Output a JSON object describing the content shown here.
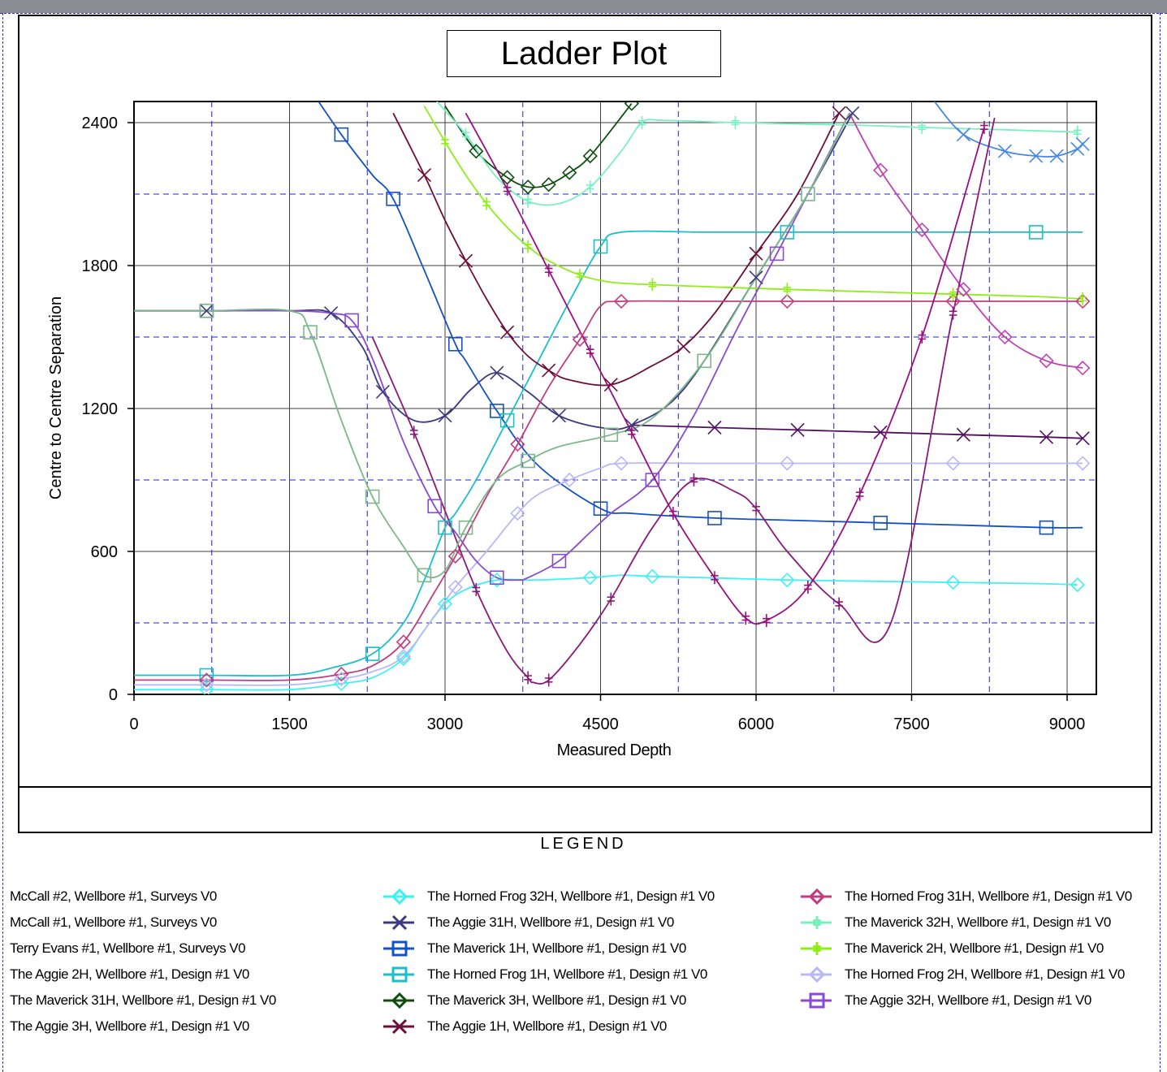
{
  "chart_data": {
    "type": "line",
    "title": "Ladder Plot",
    "xlabel": "Measured Depth",
    "ylabel": "Centre to Centre Separation",
    "xlim": [
      0,
      9300
    ],
    "ylim": [
      0,
      2500
    ],
    "x_ticks": [
      "0",
      "1500",
      "3000",
      "4500",
      "6000",
      "7500",
      "9000"
    ],
    "y_ticks": [
      "0",
      "600",
      "1200",
      "1800",
      "2400"
    ],
    "grid": "on",
    "series": [
      {
        "name": "The Horned Frog 32H, Wellbore #1, Design #1 V0",
        "color": "#3ef2f2",
        "marker": "diamond",
        "x": [
          0,
          700,
          1500,
          2000,
          2300,
          2600,
          2800,
          3000,
          3200,
          3500,
          3900,
          4400,
          4700,
          5000,
          5500,
          6300,
          7100,
          7900,
          8700,
          9100
        ],
        "y": [
          20,
          20,
          20,
          45,
          70,
          150,
          270,
          380,
          440,
          480,
          480,
          490,
          500,
          495,
          490,
          480,
          475,
          470,
          465,
          460
        ]
      },
      {
        "name": "The Aggie 31H, Wellbore #1, Design #1 V0",
        "color": "#3a3a7e",
        "marker": "x",
        "x": [
          0,
          700,
          1500,
          1900,
          2200,
          2400,
          2700,
          3000,
          3250,
          3500,
          3800,
          4100,
          4500,
          4800,
          5300,
          6000,
          6500,
          6930
        ],
        "y": [
          1610,
          1610,
          1610,
          1600,
          1460,
          1270,
          1150,
          1170,
          1280,
          1350,
          1270,
          1170,
          1120,
          1130,
          1280,
          1750,
          2100,
          2440
        ]
      },
      {
        "name": "The Maverick 1H, Wellbore #1, Design #1 V0",
        "color": "#1450c8",
        "marker": "square",
        "x": [
          1700,
          2000,
          2300,
          2500,
          2800,
          3100,
          3200,
          3500,
          3900,
          4500,
          4800,
          5600,
          6400,
          7200,
          8000,
          8800,
          9150
        ],
        "y": [
          2540,
          2350,
          2180,
          2080,
          1780,
          1470,
          1400,
          1190,
          960,
          780,
          760,
          740,
          730,
          720,
          710,
          700,
          700
        ]
      },
      {
        "name": "The Horned Frog 1H, Wellbore #1, Design #1 V0",
        "color": "#18c0c8",
        "marker": "square",
        "x": [
          0,
          700,
          1500,
          1900,
          2300,
          2600,
          2800,
          3000,
          3100,
          3300,
          3600,
          3900,
          4200,
          4500,
          4700,
          5500,
          6300,
          7100,
          7900,
          8700,
          9150
        ],
        "y": [
          80,
          80,
          80,
          110,
          170,
          300,
          480,
          700,
          760,
          900,
          1150,
          1400,
          1650,
          1880,
          1940,
          1940,
          1940,
          1940,
          1940,
          1940,
          1940
        ]
      },
      {
        "name": "The Maverick 3H, Wellbore #1, Design #1 V0",
        "color": "#0e4e0e",
        "marker": "diamond",
        "x": [
          3000,
          3300,
          3600,
          3800,
          4000,
          4200,
          4400,
          4800
        ],
        "y": [
          2470,
          2280,
          2170,
          2130,
          2140,
          2190,
          2260,
          2480
        ]
      },
      {
        "name": "The Aggie 1H, Wellbore #1, Design #1 V0",
        "color": "#6e0e38",
        "marker": "x",
        "x": [
          2500,
          2800,
          3000,
          3200,
          3400,
          3600,
          3800,
          4000,
          4200,
          4600,
          5000,
          5300,
          5600,
          6000,
          6400,
          6800
        ],
        "y": [
          2440,
          2180,
          1990,
          1820,
          1660,
          1520,
          1420,
          1360,
          1320,
          1300,
          1380,
          1460,
          1600,
          1850,
          2100,
          2440
        ]
      },
      {
        "name": "The Horned Frog 31H, Wellbore #1, Design #1 V0",
        "color": "#c23c80",
        "marker": "diamond",
        "x": [
          0,
          700,
          1500,
          2000,
          2300,
          2600,
          2900,
          3100,
          3400,
          3700,
          4000,
          4300,
          4500,
          4700,
          5500,
          6300,
          7100,
          7900,
          8700,
          9150
        ],
        "y": [
          60,
          60,
          60,
          85,
          120,
          220,
          430,
          580,
          830,
          1050,
          1290,
          1490,
          1630,
          1650,
          1650,
          1650,
          1650,
          1650,
          1650,
          1650
        ]
      },
      {
        "name": "The Maverick 32H, Wellbore #1, Design #1 V0",
        "color": "#78f0c0",
        "marker": "plus",
        "x": [
          2900,
          3200,
          3500,
          3800,
          4100,
          4400,
          4700,
          4900,
          5100,
          5800,
          6900,
          7600,
          8400,
          9100
        ],
        "y": [
          2500,
          2350,
          2170,
          2070,
          2060,
          2130,
          2280,
          2400,
          2410,
          2400,
          2390,
          2380,
          2370,
          2360
        ]
      },
      {
        "name": "The Maverick 2H, Wellbore #1, Design #1 V0",
        "color": "#90ee18",
        "marker": "plus",
        "x": [
          2800,
          3000,
          3200,
          3400,
          3600,
          3800,
          4000,
          4300,
          4600,
          5000,
          5600,
          6300,
          7100,
          7900,
          8700,
          9150
        ],
        "y": [
          2470,
          2320,
          2180,
          2060,
          1960,
          1880,
          1820,
          1760,
          1730,
          1720,
          1710,
          1700,
          1690,
          1680,
          1670,
          1660
        ]
      },
      {
        "name": "The Horned Frog 2H, Wellbore #1, Design #1 V0",
        "color": "#b8b8f8",
        "marker": "diamond",
        "x": [
          0,
          700,
          1500,
          2000,
          2300,
          2600,
          2900,
          3100,
          3400,
          3700,
          3900,
          4200,
          4500,
          4700,
          5500,
          6300,
          7100,
          7900,
          8700,
          9150
        ],
        "y": [
          40,
          40,
          40,
          65,
          95,
          160,
          330,
          450,
          600,
          760,
          840,
          900,
          950,
          970,
          970,
          970,
          970,
          970,
          970,
          970
        ]
      },
      {
        "name": "The Aggie 32H, Wellbore #1, Design #1 V0",
        "color": "#8a4ad0",
        "marker": "square",
        "x": [
          0,
          700,
          1500,
          1900,
          2100,
          2300,
          2600,
          2900,
          3100,
          3300,
          3500,
          3700,
          3800,
          4100,
          4400,
          4600,
          5000,
          5400,
          5800,
          6200,
          6500,
          6900
        ],
        "y": [
          1610,
          1610,
          1610,
          1600,
          1570,
          1410,
          1060,
          790,
          680,
          560,
          490,
          480,
          490,
          560,
          680,
          760,
          900,
          1170,
          1520,
          1850,
          2100,
          2440
        ]
      },
      {
        "name": "McCall #2, Wellbore #1, Surveys V0",
        "color": "#c040b0",
        "marker": "diamond",
        "x": [
          6900,
          7200,
          7600,
          8000,
          8400,
          8800,
          9150
        ],
        "y": [
          2440,
          2200,
          1950,
          1700,
          1500,
          1400,
          1370
        ]
      },
      {
        "name": "McCall #1, Wellbore #1, Surveys V0",
        "color": "#4488e0",
        "marker": "x",
        "x": [
          7700,
          8000,
          8400,
          8700,
          8900,
          9100,
          9150
        ],
        "y": [
          2500,
          2350,
          2280,
          2260,
          2260,
          2290,
          2310
        ]
      },
      {
        "name": "Terry Evans #1, Wellbore #1, Surveys V0",
        "color": "#501060",
        "marker": "x",
        "x": [
          4800,
          5600,
          6400,
          7200,
          8000,
          8800,
          9150
        ],
        "y": [
          1130,
          1120,
          1110,
          1100,
          1090,
          1080,
          1075
        ]
      },
      {
        "name": "The Aggie 2H, Wellbore #1, Design #1 V0",
        "color": "#8a1a78",
        "marker": "plus",
        "x": [
          2300,
          2700,
          3000,
          3300,
          3600,
          3800,
          3850,
          4000,
          4300,
          4600,
          5000,
          5400,
          5800,
          6000,
          6300,
          6800,
          7300,
          7900,
          8300
        ],
        "y": [
          1500,
          1100,
          770,
          440,
          180,
          70,
          50,
          60,
          210,
          400,
          700,
          900,
          850,
          780,
          600,
          380,
          300,
          1600,
          2420
        ]
      },
      {
        "name": "The Maverick 31H, Wellbore #1, Design #1 V0",
        "color": "#7ab888",
        "marker": "square",
        "x": [
          0,
          700,
          1500,
          1700,
          2000,
          2300,
          2600,
          2800,
          3000,
          3200,
          3500,
          3800,
          4100,
          4600,
          5000,
          5500,
          6000,
          6500,
          6900
        ],
        "y": [
          1610,
          1610,
          1610,
          1520,
          1150,
          830,
          620,
          500,
          520,
          700,
          900,
          980,
          1040,
          1090,
          1160,
          1400,
          1750,
          2100,
          2440
        ]
      },
      {
        "name": "The Aggie 3H, Wellbore #1, Design #1 V0",
        "color": "#9a0e80",
        "marker": "plus",
        "x": [
          3200,
          3600,
          4000,
          4400,
          4800,
          5200,
          5600,
          5900,
          6100,
          6500,
          7000,
          7600,
          8200
        ],
        "y": [
          2440,
          2120,
          1780,
          1440,
          1100,
          760,
          490,
          320,
          310,
          450,
          840,
          1500,
          2380
        ]
      }
    ]
  },
  "legend": {
    "title": "LEGEND",
    "col1": [
      "McCall #2, Wellbore #1, Surveys V0",
      "McCall #1, Wellbore #1, Surveys V0",
      "Terry Evans #1, Wellbore #1, Surveys V0",
      "The Aggie 2H, Wellbore #1, Design #1 V0",
      "The Maverick 31H, Wellbore #1, Design #1 V0",
      "The Aggie 3H, Wellbore #1, Design #1 V0"
    ],
    "col2": [
      {
        "label": "The Horned Frog 32H, Wellbore #1, Design #1 V0",
        "color": "#3ef2f2",
        "marker": "diamond"
      },
      {
        "label": "The Aggie 31H, Wellbore #1, Design #1 V0",
        "color": "#3a3a7e",
        "marker": "x"
      },
      {
        "label": "The Maverick 1H, Wellbore #1, Design #1 V0",
        "color": "#1450c8",
        "marker": "square"
      },
      {
        "label": "The Horned Frog 1H, Wellbore #1, Design #1 V0",
        "color": "#18c0c8",
        "marker": "square"
      },
      {
        "label": "The Maverick 3H, Wellbore #1, Design #1 V0",
        "color": "#0e4e0e",
        "marker": "diamond"
      },
      {
        "label": "The Aggie 1H, Wellbore #1, Design #1 V0",
        "color": "#6e0e38",
        "marker": "x"
      }
    ],
    "col3": [
      {
        "label": "The Horned Frog 31H, Wellbore #1, Design #1 V0",
        "color": "#c23c80",
        "marker": "diamond"
      },
      {
        "label": "The Maverick 32H, Wellbore #1, Design #1 V0",
        "color": "#78f0c0",
        "marker": "plus"
      },
      {
        "label": "The Maverick 2H, Wellbore #1, Design #1 V0",
        "color": "#90ee18",
        "marker": "plus"
      },
      {
        "label": "The Horned Frog 2H, Wellbore #1, Design #1 V0",
        "color": "#b8b8f8",
        "marker": "diamond"
      },
      {
        "label": "The Aggie 32H, Wellbore #1, Design #1 V0",
        "color": "#8a4ad0",
        "marker": "square"
      }
    ]
  }
}
